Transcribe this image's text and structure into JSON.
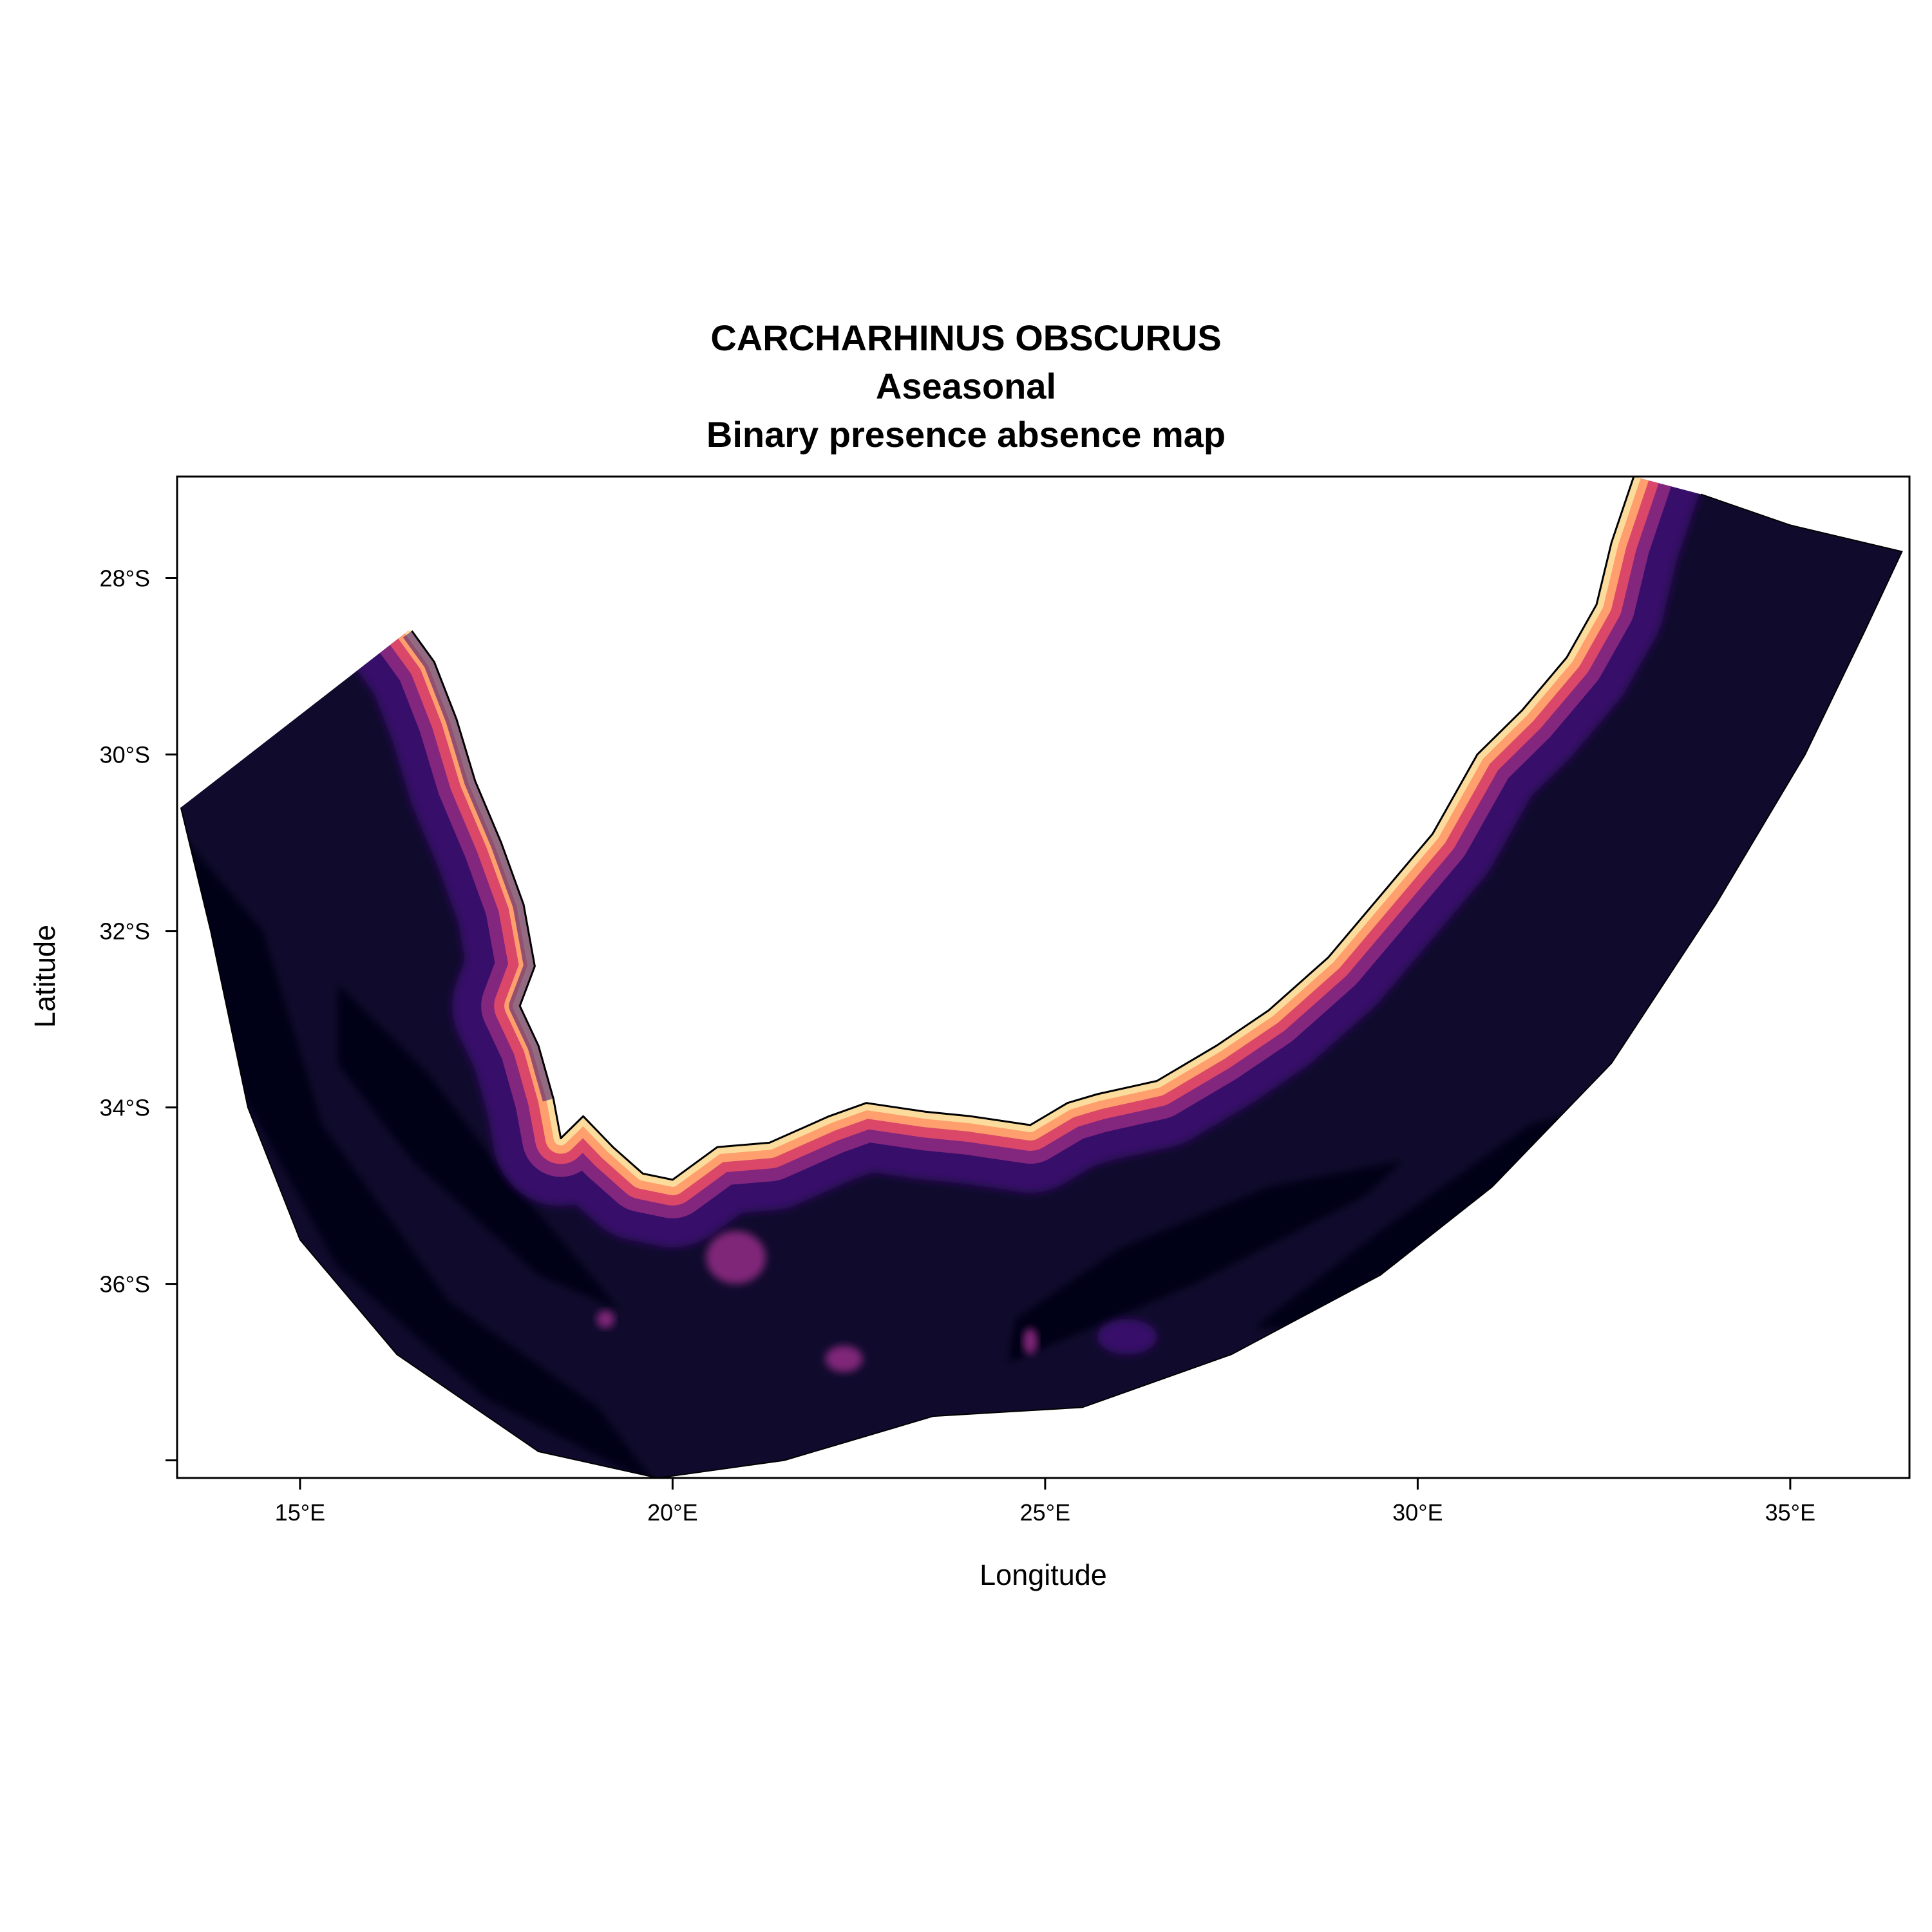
{
  "title_lines": [
    "CARCHARHINUS OBSCURUS",
    "Aseasonal",
    "Binary presence absence map"
  ],
  "x_axis": {
    "label": "Longitude",
    "range": [
      13.35,
      36.6
    ],
    "ticks": [
      {
        "value": 15,
        "label": "15°E"
      },
      {
        "value": 20,
        "label": "20°E"
      },
      {
        "value": 25,
        "label": "25°E"
      },
      {
        "value": 30,
        "label": "30°E"
      },
      {
        "value": 35,
        "label": "35°E"
      }
    ]
  },
  "y_axis": {
    "label": "Latitude",
    "range": [
      -38.2,
      -26.85
    ],
    "ticks": [
      {
        "value": -28,
        "label": "28°S"
      },
      {
        "value": -30,
        "label": "30°S"
      },
      {
        "value": -32,
        "label": "32°S"
      },
      {
        "value": -34,
        "label": "34°S"
      },
      {
        "value": -36,
        "label": "36°S"
      },
      {
        "value": -38,
        "label": ""
      }
    ]
  },
  "colors": {
    "very_low": "#050416",
    "low": "#100b2d",
    "mid_low": "#3b0f70",
    "mid": "#8c2981",
    "mid_high": "#de4968",
    "high": "#fe9f6d",
    "very_high": "#fcdc9c",
    "coast": "#000000"
  },
  "chart_data": {
    "type": "heatmap",
    "x_unit": "degrees longitude (E)",
    "y_unit": "degrees latitude (negative = S)",
    "coastline": [
      [
        16.5,
        -28.6
      ],
      [
        16.8,
        -28.95
      ],
      [
        17.1,
        -29.6
      ],
      [
        17.35,
        -30.3
      ],
      [
        17.7,
        -31.0
      ],
      [
        18.0,
        -31.7
      ],
      [
        18.15,
        -32.4
      ],
      [
        17.95,
        -32.85
      ],
      [
        18.2,
        -33.3
      ],
      [
        18.4,
        -33.9
      ],
      [
        18.5,
        -34.35
      ],
      [
        18.8,
        -34.1
      ],
      [
        19.2,
        -34.45
      ],
      [
        19.6,
        -34.75
      ],
      [
        20.0,
        -34.82
      ],
      [
        20.6,
        -34.45
      ],
      [
        21.3,
        -34.4
      ],
      [
        22.1,
        -34.1
      ],
      [
        22.6,
        -33.95
      ],
      [
        23.4,
        -34.05
      ],
      [
        24.0,
        -34.1
      ],
      [
        24.8,
        -34.2
      ],
      [
        25.3,
        -33.95
      ],
      [
        25.7,
        -33.85
      ],
      [
        26.5,
        -33.7
      ],
      [
        27.3,
        -33.3
      ],
      [
        28.0,
        -32.9
      ],
      [
        28.8,
        -32.3
      ],
      [
        29.6,
        -31.5
      ],
      [
        30.2,
        -30.9
      ],
      [
        30.8,
        -30.0
      ],
      [
        31.4,
        -29.5
      ],
      [
        32.0,
        -28.9
      ],
      [
        32.4,
        -28.3
      ],
      [
        32.6,
        -27.6
      ],
      [
        32.9,
        -26.85
      ]
    ],
    "domain_outer_edge": [
      [
        13.4,
        -30.6
      ],
      [
        13.8,
        -32.0
      ],
      [
        14.3,
        -34.0
      ],
      [
        15.0,
        -35.5
      ],
      [
        16.3,
        -36.8
      ],
      [
        18.2,
        -37.9
      ],
      [
        19.8,
        -38.2
      ],
      [
        21.5,
        -38.0
      ],
      [
        23.5,
        -37.5
      ],
      [
        25.5,
        -37.4
      ],
      [
        27.5,
        -36.8
      ],
      [
        29.5,
        -35.9
      ],
      [
        31.0,
        -34.9
      ],
      [
        32.6,
        -33.5
      ],
      [
        34.0,
        -31.7
      ],
      [
        35.2,
        -30.0
      ],
      [
        36.0,
        -28.6
      ],
      [
        36.5,
        -27.7
      ],
      [
        35.0,
        -27.4
      ],
      [
        33.8,
        -27.05
      ]
    ],
    "domain_inner_edge_start": [
      16.45,
      -28.6
    ],
    "patches": [
      {
        "label": "",
        "center": [
          20.85,
          -35.7
        ],
        "radius_deg": [
          0.4,
          0.3
        ],
        "level": "mid"
      },
      {
        "label": "",
        "center": [
          22.3,
          -36.85
        ],
        "radius_deg": [
          0.25,
          0.15
        ],
        "level": "mid"
      },
      {
        "label": "",
        "center": [
          26.1,
          -36.6
        ],
        "radius_deg": [
          0.4,
          0.2
        ],
        "level": "mid_low"
      },
      {
        "label": "",
        "center": [
          24.8,
          -36.65
        ],
        "radius_deg": [
          0.1,
          0.15
        ],
        "level": "mid"
      },
      {
        "label": "",
        "center": [
          19.1,
          -36.4
        ],
        "radius_deg": [
          0.12,
          0.1
        ],
        "level": "mid"
      }
    ]
  }
}
